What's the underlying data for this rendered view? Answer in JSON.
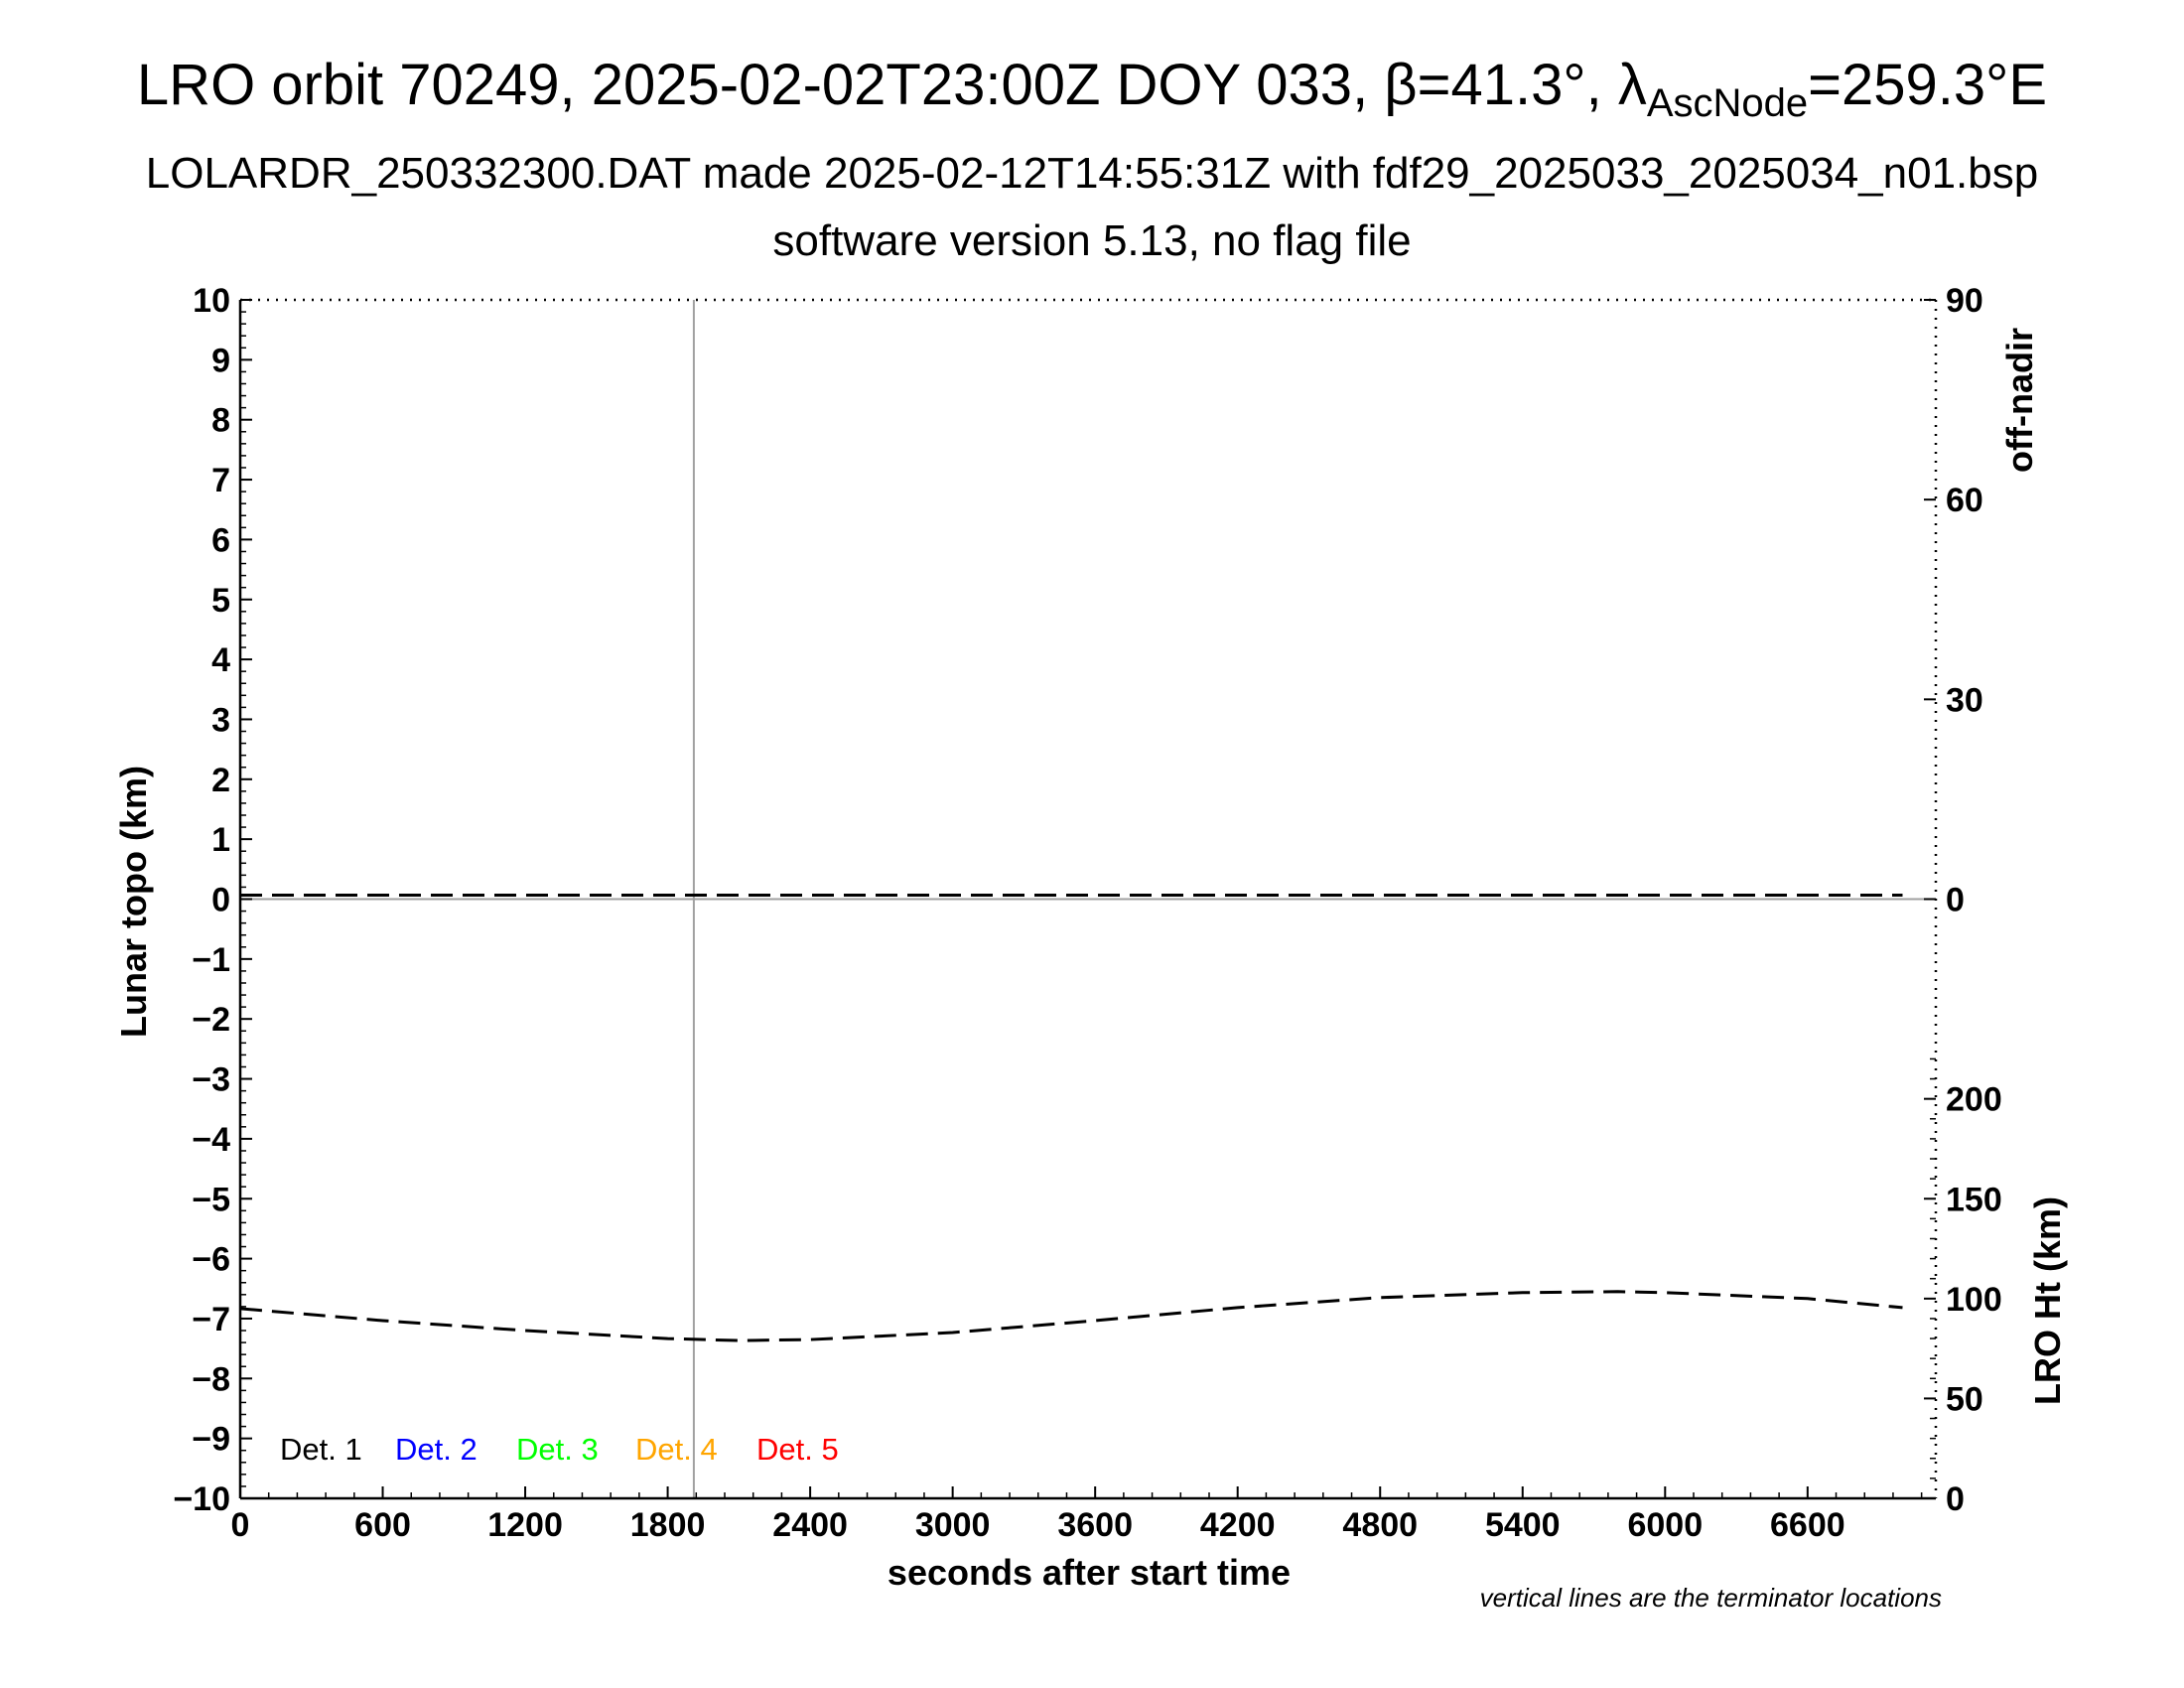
{
  "header": {
    "title_main": "LRO orbit 70249, 2025-02-02T23:00Z DOY 033, β=41.3°, λ",
    "title_sub": "AscNode",
    "title_end": "=259.3°E",
    "subtitle": "LOLARDR_250332300.DAT made 2025-02-12T14:55:31Z with fdf29_2025033_2025034_n01.bsp",
    "version": "software version 5.13, no flag file"
  },
  "note": "vertical lines are the terminator locations",
  "chart_data": {
    "type": "line",
    "xlabel": "seconds after start time",
    "ylabel": "Lunar topo (km)",
    "y2label_top": "off-nadir",
    "y2label_bottom": "LRO Ht (km)",
    "xlim": [
      0,
      7140
    ],
    "ylim": [
      -10,
      10
    ],
    "x_ticks": [
      0,
      600,
      1200,
      1800,
      2400,
      3000,
      3600,
      4200,
      4800,
      5400,
      6000,
      6600
    ],
    "y_ticks": [
      -10,
      -9,
      -8,
      -7,
      -6,
      -5,
      -4,
      -3,
      -2,
      -1,
      0,
      1,
      2,
      3,
      4,
      5,
      6,
      7,
      8,
      9,
      10
    ],
    "y_tick_labels": [
      "−10",
      "−9",
      "−8",
      "−7",
      "−6",
      "−5",
      "−4",
      "−3",
      "−2",
      "−1",
      "0",
      "1",
      "2",
      "3",
      "4",
      "5",
      "6",
      "7",
      "8",
      "9",
      "10"
    ],
    "offnadir_ticks": [
      0,
      30,
      60,
      90
    ],
    "offnadir_range": [
      -90,
      90
    ],
    "height_ticks": [
      0,
      50,
      100,
      150,
      200
    ],
    "height_range": [
      0,
      600
    ],
    "terminator_x": [
      1910
    ],
    "zero_line_y": 0,
    "legend": [
      {
        "label": "Det. 1",
        "color": "#000000"
      },
      {
        "label": "Det. 2",
        "color": "#0000ff"
      },
      {
        "label": "Det. 3",
        "color": "#00ff00"
      },
      {
        "label": "Det. 4",
        "color": "#ffa500"
      },
      {
        "label": "Det. 5",
        "color": "#ff0000"
      }
    ],
    "series": [
      {
        "axis": "off-nadir",
        "color": "#000000",
        "dash": true,
        "x": [
          0,
          600,
          1200,
          1800,
          2400,
          3000,
          3600,
          4200,
          4800,
          5400,
          6000,
          6600,
          7000
        ],
        "y": [
          0.6,
          0.6,
          0.6,
          0.6,
          0.6,
          0.6,
          0.6,
          0.6,
          0.6,
          0.6,
          0.6,
          0.6,
          0.6
        ]
      },
      {
        "axis": "height",
        "color": "#000000",
        "dash": true,
        "x": [
          0,
          600,
          1200,
          1800,
          2100,
          2400,
          3000,
          3600,
          4200,
          4800,
          5400,
          5800,
          6000,
          6600,
          7000
        ],
        "y": [
          95,
          89,
          84,
          80,
          79,
          79.5,
          83,
          89,
          95.5,
          100.5,
          103,
          103.5,
          103,
          100,
          95.5
        ]
      }
    ]
  }
}
